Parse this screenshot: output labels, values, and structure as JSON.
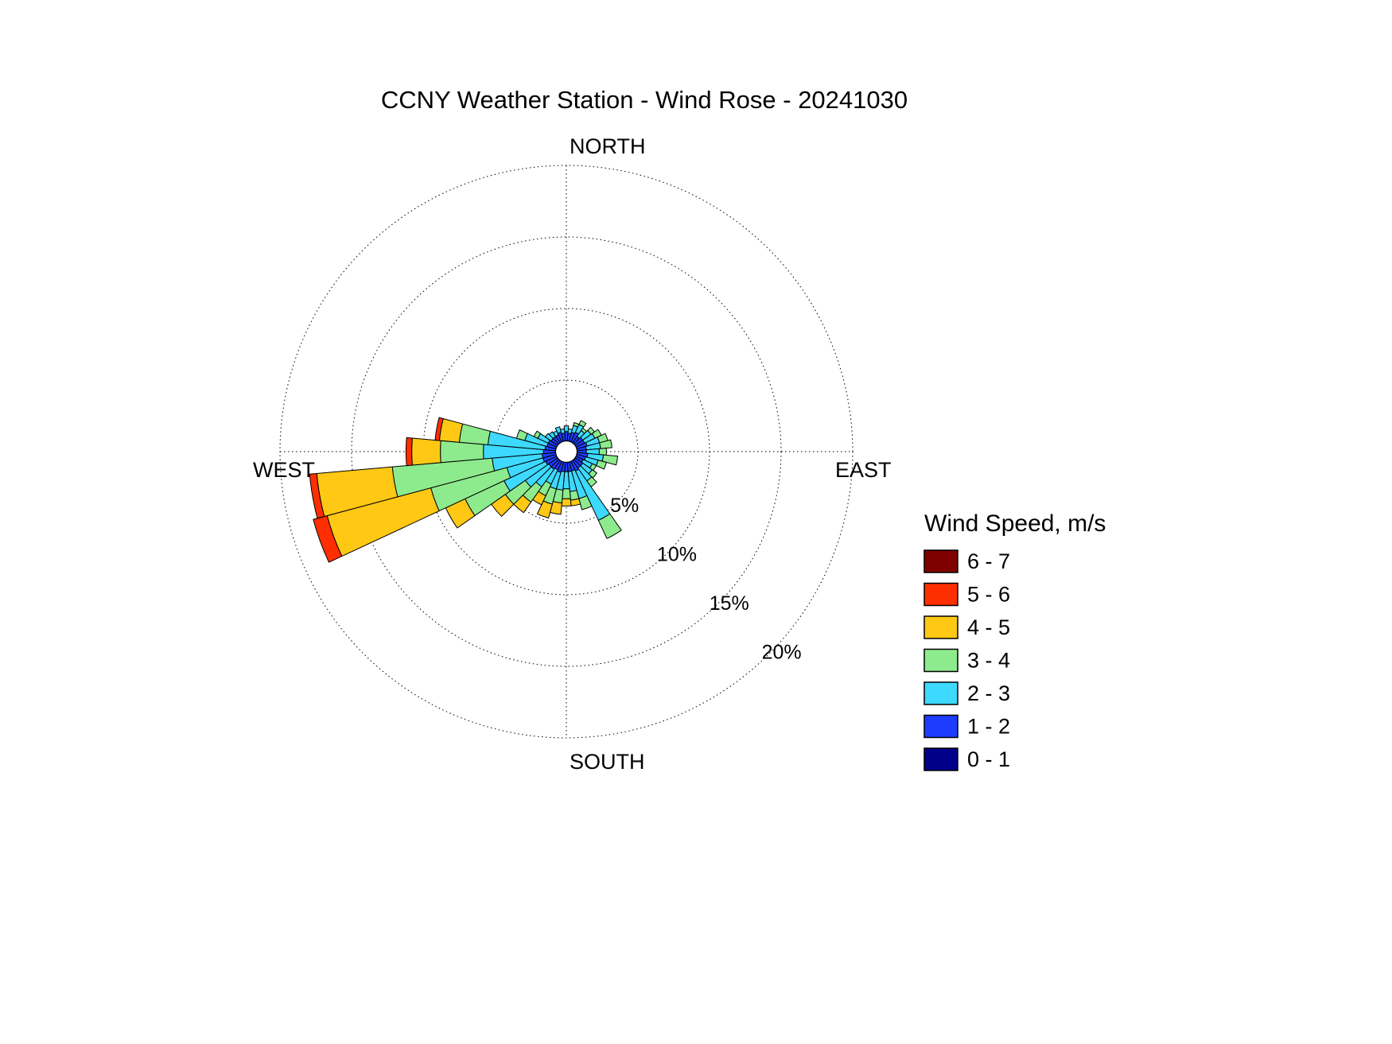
{
  "chart_data": {
    "type": "windrose",
    "title": "CCNY Weather Station - Wind Rose - 20241030",
    "direction_labels": {
      "north": "NORTH",
      "east": "EAST",
      "south": "SOUTH",
      "west": "WEST"
    },
    "ring_labels": [
      "5%",
      "10%",
      "15%",
      "20%"
    ],
    "ring_percents": [
      5,
      10,
      15,
      20
    ],
    "max_percent": 20,
    "legend_title": "Wind Speed, m/s",
    "legend_position": "right",
    "grid_style": "dotted",
    "speed_bins": [
      {
        "label": "0 - 1",
        "color": "#00008B"
      },
      {
        "label": "1 - 2",
        "color": "#1E3CFF"
      },
      {
        "label": "2 - 3",
        "color": "#3DD9FF"
      },
      {
        "label": "3 - 4",
        "color": "#8DEB8D"
      },
      {
        "label": "4 - 5",
        "color": "#FFC814"
      },
      {
        "label": "5 - 6",
        "color": "#FF2E00"
      },
      {
        "label": "6 - 7",
        "color": "#800000"
      }
    ],
    "legend_order_top_to_bottom": [
      "6 - 7",
      "5 - 6",
      "4 - 5",
      "3 - 4",
      "2 - 3",
      "1 - 2",
      "0 - 1"
    ],
    "sectors_note": "direction_deg is compass direction wind comes from (0=N, 90=E); frequencies_percent are stacked per speed bin 0-1 ... 6-7 m/s",
    "sectors": [
      {
        "direction_deg": 0,
        "frequencies_percent": [
          0.5,
          0.9,
          0.4,
          0,
          0,
          0,
          0
        ]
      },
      {
        "direction_deg": 10,
        "frequencies_percent": [
          0.5,
          0.8,
          0.3,
          0,
          0,
          0,
          0
        ]
      },
      {
        "direction_deg": 20,
        "frequencies_percent": [
          0.5,
          0.9,
          0.5,
          0.2,
          0,
          0,
          0
        ]
      },
      {
        "direction_deg": 30,
        "frequencies_percent": [
          0.5,
          1.0,
          0.6,
          0.3,
          0,
          0,
          0
        ]
      },
      {
        "direction_deg": 40,
        "frequencies_percent": [
          0.5,
          0.8,
          0.5,
          0.2,
          0,
          0,
          0
        ]
      },
      {
        "direction_deg": 50,
        "frequencies_percent": [
          0.5,
          0.9,
          0.7,
          0.3,
          0,
          0,
          0
        ]
      },
      {
        "direction_deg": 60,
        "frequencies_percent": [
          0.5,
          0.9,
          0.8,
          0.5,
          0,
          0,
          0
        ]
      },
      {
        "direction_deg": 70,
        "frequencies_percent": [
          0.5,
          1.0,
          0.9,
          0.6,
          0,
          0,
          0
        ]
      },
      {
        "direction_deg": 80,
        "frequencies_percent": [
          0.5,
          0.9,
          1.0,
          0.8,
          0,
          0,
          0
        ]
      },
      {
        "direction_deg": 90,
        "frequencies_percent": [
          0.5,
          0.9,
          0.9,
          0.5,
          0,
          0,
          0
        ]
      },
      {
        "direction_deg": 100,
        "frequencies_percent": [
          0.5,
          1.0,
          1.1,
          1.0,
          0,
          0,
          0
        ]
      },
      {
        "direction_deg": 110,
        "frequencies_percent": [
          0.5,
          0.9,
          0.9,
          0.6,
          0,
          0,
          0
        ]
      },
      {
        "direction_deg": 120,
        "frequencies_percent": [
          0.5,
          0.8,
          0.7,
          0.3,
          0,
          0,
          0
        ]
      },
      {
        "direction_deg": 130,
        "frequencies_percent": [
          0.5,
          0.9,
          0.8,
          0.4,
          0,
          0,
          0
        ]
      },
      {
        "direction_deg": 140,
        "frequencies_percent": [
          0.5,
          0.9,
          1.1,
          0.5,
          0,
          0,
          0
        ]
      },
      {
        "direction_deg": 150,
        "frequencies_percent": [
          0.5,
          1.0,
          3.8,
          1.4,
          0,
          0,
          0
        ]
      },
      {
        "direction_deg": 160,
        "frequencies_percent": [
          0.5,
          0.9,
          2.0,
          0.8,
          0,
          0,
          0
        ]
      },
      {
        "direction_deg": 170,
        "frequencies_percent": [
          0.5,
          0.9,
          1.4,
          0.6,
          0.4,
          0,
          0
        ]
      },
      {
        "direction_deg": 180,
        "frequencies_percent": [
          0.5,
          0.9,
          1.2,
          0.7,
          0.5,
          0,
          0
        ]
      },
      {
        "direction_deg": 190,
        "frequencies_percent": [
          0.5,
          0.9,
          1.3,
          0.9,
          0.8,
          0,
          0
        ]
      },
      {
        "direction_deg": 200,
        "frequencies_percent": [
          0.5,
          1.0,
          1.2,
          1.1,
          1.0,
          0,
          0
        ]
      },
      {
        "direction_deg": 210,
        "frequencies_percent": [
          0.5,
          0.9,
          1.1,
          0.9,
          0.7,
          0,
          0
        ]
      },
      {
        "direction_deg": 220,
        "frequencies_percent": [
          0.5,
          1.0,
          1.5,
          1.3,
          0.9,
          0,
          0
        ]
      },
      {
        "direction_deg": 230,
        "frequencies_percent": [
          0.5,
          1.0,
          2.0,
          1.7,
          1.2,
          0,
          0
        ]
      },
      {
        "direction_deg": 240,
        "frequencies_percent": [
          0.5,
          1.1,
          3.2,
          3.0,
          1.5,
          0,
          0
        ]
      },
      {
        "direction_deg": 250,
        "frequencies_percent": [
          0.5,
          1.2,
          2.6,
          5.5,
          7.5,
          1.0,
          0
        ]
      },
      {
        "direction_deg": 260,
        "frequencies_percent": [
          0.5,
          1.2,
          3.5,
          7.0,
          5.3,
          0.5,
          0
        ]
      },
      {
        "direction_deg": 270,
        "frequencies_percent": [
          0.5,
          1.1,
          4.2,
          3.0,
          2.0,
          0.4,
          0
        ]
      },
      {
        "direction_deg": 280,
        "frequencies_percent": [
          0.5,
          1.0,
          4.0,
          2.0,
          1.4,
          0.3,
          0
        ]
      },
      {
        "direction_deg": 290,
        "frequencies_percent": [
          0.5,
          0.9,
          1.6,
          0.6,
          0,
          0,
          0
        ]
      },
      {
        "direction_deg": 300,
        "frequencies_percent": [
          0.5,
          0.9,
          0.8,
          0.3,
          0,
          0,
          0
        ]
      },
      {
        "direction_deg": 310,
        "frequencies_percent": [
          0.5,
          0.8,
          0.5,
          0,
          0,
          0,
          0
        ]
      },
      {
        "direction_deg": 320,
        "frequencies_percent": [
          0.5,
          0.8,
          0.4,
          0,
          0,
          0,
          0
        ]
      },
      {
        "direction_deg": 330,
        "frequencies_percent": [
          0.5,
          0.8,
          0.3,
          0,
          0,
          0,
          0
        ]
      },
      {
        "direction_deg": 340,
        "frequencies_percent": [
          0.5,
          0.9,
          0.4,
          0,
          0,
          0,
          0
        ]
      },
      {
        "direction_deg": 350,
        "frequencies_percent": [
          0.5,
          0.8,
          0.3,
          0,
          0,
          0,
          0
        ]
      }
    ]
  }
}
